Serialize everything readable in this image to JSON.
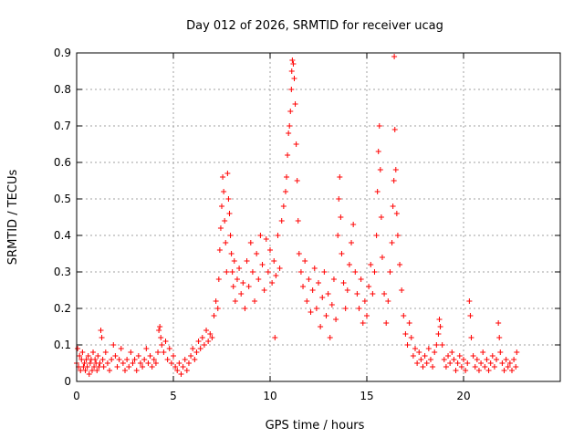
{
  "chart_data": {
    "type": "scatter",
    "title": "Day 012 of 2026, SRMTID for receiver ucag",
    "xlabel": "GPS time / hours",
    "ylabel": "SRMTID / TECUs",
    "xlim": [
      0,
      25
    ],
    "ylim": [
      0,
      0.9
    ],
    "xticks": [
      0,
      5,
      10,
      15,
      20
    ],
    "xtick_labels": [
      "0",
      "5",
      "10",
      "15",
      "20"
    ],
    "yticks": [
      0,
      0.1,
      0.2,
      0.3,
      0.4,
      0.5,
      0.6,
      0.7,
      0.8,
      0.9
    ],
    "ytick_labels": [
      "0",
      "0.1",
      "0.2",
      "0.3",
      "0.4",
      "0.5",
      "0.6",
      "0.7",
      "0.8",
      "0.9"
    ],
    "grid": true,
    "marker": "+",
    "color": "#ff0000",
    "series": [
      {
        "name": "SRMTID",
        "points": [
          [
            0.0,
            0.05
          ],
          [
            0.05,
            0.09
          ],
          [
            0.1,
            0.04
          ],
          [
            0.15,
            0.07
          ],
          [
            0.2,
            0.03
          ],
          [
            0.25,
            0.06
          ],
          [
            0.3,
            0.08
          ],
          [
            0.35,
            0.04
          ],
          [
            0.4,
            0.05
          ],
          [
            0.45,
            0.03
          ],
          [
            0.5,
            0.06
          ],
          [
            0.55,
            0.04
          ],
          [
            0.6,
            0.07
          ],
          [
            0.65,
            0.02
          ],
          [
            0.7,
            0.05
          ],
          [
            0.75,
            0.06
          ],
          [
            0.8,
            0.03
          ],
          [
            0.85,
            0.08
          ],
          [
            0.9,
            0.04
          ],
          [
            0.95,
            0.06
          ],
          [
            1.0,
            0.05
          ],
          [
            1.05,
            0.03
          ],
          [
            1.1,
            0.07
          ],
          [
            1.15,
            0.04
          ],
          [
            1.2,
            0.05
          ],
          [
            1.25,
            0.14
          ],
          [
            1.3,
            0.12
          ],
          [
            1.35,
            0.06
          ],
          [
            1.4,
            0.04
          ],
          [
            1.5,
            0.08
          ],
          [
            1.6,
            0.05
          ],
          [
            1.7,
            0.03
          ],
          [
            1.8,
            0.06
          ],
          [
            1.9,
            0.1
          ],
          [
            2.0,
            0.07
          ],
          [
            2.1,
            0.04
          ],
          [
            2.2,
            0.06
          ],
          [
            2.3,
            0.09
          ],
          [
            2.4,
            0.05
          ],
          [
            2.5,
            0.03
          ],
          [
            2.6,
            0.06
          ],
          [
            2.7,
            0.04
          ],
          [
            2.8,
            0.08
          ],
          [
            2.9,
            0.05
          ],
          [
            3.0,
            0.06
          ],
          [
            3.1,
            0.03
          ],
          [
            3.2,
            0.07
          ],
          [
            3.3,
            0.05
          ],
          [
            3.4,
            0.04
          ],
          [
            3.5,
            0.06
          ],
          [
            3.6,
            0.09
          ],
          [
            3.7,
            0.05
          ],
          [
            3.8,
            0.07
          ],
          [
            3.9,
            0.04
          ],
          [
            4.0,
            0.06
          ],
          [
            4.1,
            0.05
          ],
          [
            4.2,
            0.08
          ],
          [
            4.25,
            0.14
          ],
          [
            4.3,
            0.15
          ],
          [
            4.35,
            0.12
          ],
          [
            4.4,
            0.1
          ],
          [
            4.5,
            0.08
          ],
          [
            4.6,
            0.11
          ],
          [
            4.7,
            0.06
          ],
          [
            4.8,
            0.09
          ],
          [
            4.9,
            0.05
          ],
          [
            5.0,
            0.07
          ],
          [
            5.1,
            0.04
          ],
          [
            5.2,
            0.03
          ],
          [
            5.3,
            0.05
          ],
          [
            5.4,
            0.02
          ],
          [
            5.5,
            0.04
          ],
          [
            5.6,
            0.06
          ],
          [
            5.7,
            0.03
          ],
          [
            5.8,
            0.05
          ],
          [
            5.9,
            0.07
          ],
          [
            6.0,
            0.09
          ],
          [
            6.1,
            0.06
          ],
          [
            6.2,
            0.08
          ],
          [
            6.3,
            0.11
          ],
          [
            6.4,
            0.09
          ],
          [
            6.5,
            0.12
          ],
          [
            6.6,
            0.1
          ],
          [
            6.7,
            0.14
          ],
          [
            6.8,
            0.11
          ],
          [
            6.9,
            0.13
          ],
          [
            7.0,
            0.12
          ],
          [
            7.1,
            0.18
          ],
          [
            7.2,
            0.22
          ],
          [
            7.3,
            0.2
          ],
          [
            7.35,
            0.28
          ],
          [
            7.4,
            0.36
          ],
          [
            7.45,
            0.42
          ],
          [
            7.5,
            0.48
          ],
          [
            7.55,
            0.56
          ],
          [
            7.6,
            0.52
          ],
          [
            7.65,
            0.44
          ],
          [
            7.7,
            0.38
          ],
          [
            7.75,
            0.3
          ],
          [
            7.8,
            0.57
          ],
          [
            7.85,
            0.5
          ],
          [
            7.9,
            0.46
          ],
          [
            7.95,
            0.4
          ],
          [
            8.0,
            0.35
          ],
          [
            8.05,
            0.3
          ],
          [
            8.1,
            0.26
          ],
          [
            8.15,
            0.33
          ],
          [
            8.2,
            0.22
          ],
          [
            8.3,
            0.28
          ],
          [
            8.4,
            0.31
          ],
          [
            8.5,
            0.24
          ],
          [
            8.6,
            0.27
          ],
          [
            8.7,
            0.2
          ],
          [
            8.8,
            0.33
          ],
          [
            8.9,
            0.26
          ],
          [
            9.0,
            0.38
          ],
          [
            9.1,
            0.3
          ],
          [
            9.2,
            0.22
          ],
          [
            9.3,
            0.35
          ],
          [
            9.4,
            0.28
          ],
          [
            9.5,
            0.4
          ],
          [
            9.6,
            0.32
          ],
          [
            9.7,
            0.25
          ],
          [
            9.8,
            0.39
          ],
          [
            9.9,
            0.3
          ],
          [
            10.0,
            0.36
          ],
          [
            10.1,
            0.27
          ],
          [
            10.2,
            0.33
          ],
          [
            10.25,
            0.12
          ],
          [
            10.3,
            0.29
          ],
          [
            10.4,
            0.4
          ],
          [
            10.5,
            0.31
          ],
          [
            10.6,
            0.44
          ],
          [
            10.7,
            0.48
          ],
          [
            10.8,
            0.52
          ],
          [
            10.85,
            0.56
          ],
          [
            10.9,
            0.62
          ],
          [
            10.95,
            0.68
          ],
          [
            11.0,
            0.7
          ],
          [
            11.05,
            0.74
          ],
          [
            11.1,
            0.8
          ],
          [
            11.12,
            0.85
          ],
          [
            11.15,
            0.88
          ],
          [
            11.2,
            0.87
          ],
          [
            11.25,
            0.83
          ],
          [
            11.3,
            0.76
          ],
          [
            11.35,
            0.65
          ],
          [
            11.4,
            0.55
          ],
          [
            11.45,
            0.44
          ],
          [
            11.5,
            0.35
          ],
          [
            11.6,
            0.3
          ],
          [
            11.7,
            0.26
          ],
          [
            11.8,
            0.33
          ],
          [
            11.9,
            0.22
          ],
          [
            12.0,
            0.28
          ],
          [
            12.1,
            0.19
          ],
          [
            12.2,
            0.25
          ],
          [
            12.3,
            0.31
          ],
          [
            12.4,
            0.2
          ],
          [
            12.5,
            0.27
          ],
          [
            12.6,
            0.15
          ],
          [
            12.7,
            0.23
          ],
          [
            12.8,
            0.3
          ],
          [
            12.9,
            0.18
          ],
          [
            13.0,
            0.24
          ],
          [
            13.1,
            0.12
          ],
          [
            13.2,
            0.21
          ],
          [
            13.3,
            0.28
          ],
          [
            13.4,
            0.17
          ],
          [
            13.5,
            0.4
          ],
          [
            13.55,
            0.5
          ],
          [
            13.6,
            0.56
          ],
          [
            13.65,
            0.45
          ],
          [
            13.7,
            0.35
          ],
          [
            13.8,
            0.27
          ],
          [
            13.9,
            0.2
          ],
          [
            14.0,
            0.25
          ],
          [
            14.1,
            0.32
          ],
          [
            14.2,
            0.38
          ],
          [
            14.3,
            0.43
          ],
          [
            14.4,
            0.3
          ],
          [
            14.5,
            0.24
          ],
          [
            14.6,
            0.2
          ],
          [
            14.7,
            0.28
          ],
          [
            14.8,
            0.16
          ],
          [
            14.9,
            0.22
          ],
          [
            15.0,
            0.18
          ],
          [
            15.1,
            0.26
          ],
          [
            15.2,
            0.32
          ],
          [
            15.3,
            0.24
          ],
          [
            15.4,
            0.3
          ],
          [
            15.5,
            0.4
          ],
          [
            15.55,
            0.52
          ],
          [
            15.6,
            0.63
          ],
          [
            15.65,
            0.7
          ],
          [
            15.7,
            0.58
          ],
          [
            15.75,
            0.45
          ],
          [
            15.8,
            0.34
          ],
          [
            15.9,
            0.24
          ],
          [
            16.0,
            0.16
          ],
          [
            16.1,
            0.22
          ],
          [
            16.2,
            0.3
          ],
          [
            16.3,
            0.38
          ],
          [
            16.35,
            0.48
          ],
          [
            16.4,
            0.55
          ],
          [
            16.42,
            0.89
          ],
          [
            16.45,
            0.69
          ],
          [
            16.5,
            0.58
          ],
          [
            16.55,
            0.46
          ],
          [
            16.6,
            0.4
          ],
          [
            16.7,
            0.32
          ],
          [
            16.8,
            0.25
          ],
          [
            16.9,
            0.18
          ],
          [
            17.0,
            0.13
          ],
          [
            17.1,
            0.1
          ],
          [
            17.2,
            0.16
          ],
          [
            17.3,
            0.12
          ],
          [
            17.4,
            0.07
          ],
          [
            17.5,
            0.09
          ],
          [
            17.6,
            0.05
          ],
          [
            17.7,
            0.08
          ],
          [
            17.8,
            0.06
          ],
          [
            17.9,
            0.04
          ],
          [
            18.0,
            0.07
          ],
          [
            18.1,
            0.05
          ],
          [
            18.2,
            0.09
          ],
          [
            18.3,
            0.06
          ],
          [
            18.4,
            0.04
          ],
          [
            18.5,
            0.08
          ],
          [
            18.6,
            0.1
          ],
          [
            18.7,
            0.13
          ],
          [
            18.75,
            0.17
          ],
          [
            18.8,
            0.15
          ],
          [
            18.9,
            0.1
          ],
          [
            19.0,
            0.06
          ],
          [
            19.1,
            0.04
          ],
          [
            19.2,
            0.07
          ],
          [
            19.3,
            0.05
          ],
          [
            19.4,
            0.08
          ],
          [
            19.5,
            0.06
          ],
          [
            19.6,
            0.03
          ],
          [
            19.7,
            0.05
          ],
          [
            19.8,
            0.07
          ],
          [
            19.9,
            0.04
          ],
          [
            20.0,
            0.06
          ],
          [
            20.1,
            0.03
          ],
          [
            20.2,
            0.05
          ],
          [
            20.3,
            0.22
          ],
          [
            20.35,
            0.18
          ],
          [
            20.4,
            0.12
          ],
          [
            20.5,
            0.07
          ],
          [
            20.6,
            0.04
          ],
          [
            20.7,
            0.06
          ],
          [
            20.8,
            0.03
          ],
          [
            20.9,
            0.05
          ],
          [
            21.0,
            0.08
          ],
          [
            21.1,
            0.04
          ],
          [
            21.2,
            0.06
          ],
          [
            21.3,
            0.03
          ],
          [
            21.4,
            0.05
          ],
          [
            21.5,
            0.07
          ],
          [
            21.6,
            0.04
          ],
          [
            21.7,
            0.06
          ],
          [
            21.8,
            0.16
          ],
          [
            21.85,
            0.12
          ],
          [
            21.9,
            0.08
          ],
          [
            22.0,
            0.05
          ],
          [
            22.1,
            0.03
          ],
          [
            22.2,
            0.06
          ],
          [
            22.3,
            0.04
          ],
          [
            22.4,
            0.05
          ],
          [
            22.5,
            0.03
          ],
          [
            22.6,
            0.06
          ],
          [
            22.7,
            0.04
          ],
          [
            22.75,
            0.08
          ]
        ]
      }
    ]
  }
}
